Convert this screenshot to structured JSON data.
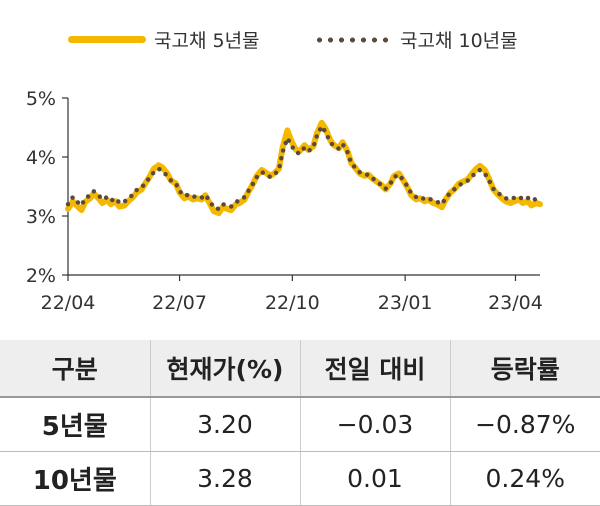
{
  "chart_data": {
    "type": "line",
    "xlabel": "",
    "ylabel": "",
    "x_ticks": [
      "22/04",
      "22/07",
      "22/10",
      "23/01",
      "23/04"
    ],
    "y_ticks": [
      "2%",
      "3%",
      "4%",
      "5%"
    ],
    "ylim": [
      2,
      5
    ],
    "grid": false,
    "legend": "top",
    "series": [
      {
        "name": "국고채 5년물",
        "color": "#F5B800",
        "style": "solid",
        "points": [
          [
            "2022-04-01",
            3.12
          ],
          [
            "2022-04-05",
            3.25
          ],
          [
            "2022-04-08",
            3.18
          ],
          [
            "2022-04-12",
            3.1
          ],
          [
            "2022-04-15",
            3.24
          ],
          [
            "2022-04-19",
            3.3
          ],
          [
            "2022-04-22",
            3.38
          ],
          [
            "2022-04-26",
            3.3
          ],
          [
            "2022-04-29",
            3.22
          ],
          [
            "2022-05-03",
            3.27
          ],
          [
            "2022-05-06",
            3.2
          ],
          [
            "2022-05-10",
            3.25
          ],
          [
            "2022-05-13",
            3.16
          ],
          [
            "2022-05-17",
            3.18
          ],
          [
            "2022-05-20",
            3.25
          ],
          [
            "2022-05-24",
            3.32
          ],
          [
            "2022-05-27",
            3.4
          ],
          [
            "2022-05-31",
            3.45
          ],
          [
            "2022-06-03",
            3.55
          ],
          [
            "2022-06-07",
            3.68
          ],
          [
            "2022-06-10",
            3.8
          ],
          [
            "2022-06-14",
            3.86
          ],
          [
            "2022-06-17",
            3.82
          ],
          [
            "2022-06-21",
            3.72
          ],
          [
            "2022-06-24",
            3.6
          ],
          [
            "2022-06-28",
            3.55
          ],
          [
            "2022-07-01",
            3.4
          ],
          [
            "2022-07-05",
            3.3
          ],
          [
            "2022-07-08",
            3.33
          ],
          [
            "2022-07-12",
            3.28
          ],
          [
            "2022-07-15",
            3.3
          ],
          [
            "2022-07-19",
            3.28
          ],
          [
            "2022-07-22",
            3.35
          ],
          [
            "2022-07-26",
            3.2
          ],
          [
            "2022-07-29",
            3.08
          ],
          [
            "2022-08-02",
            3.05
          ],
          [
            "2022-08-05",
            3.15
          ],
          [
            "2022-08-09",
            3.12
          ],
          [
            "2022-08-12",
            3.1
          ],
          [
            "2022-08-16",
            3.2
          ],
          [
            "2022-08-19",
            3.22
          ],
          [
            "2022-08-23",
            3.28
          ],
          [
            "2022-08-26",
            3.4
          ],
          [
            "2022-08-30",
            3.55
          ],
          [
            "2022-09-02",
            3.68
          ],
          [
            "2022-09-06",
            3.78
          ],
          [
            "2022-09-09",
            3.74
          ],
          [
            "2022-09-13",
            3.68
          ],
          [
            "2022-09-16",
            3.72
          ],
          [
            "2022-09-20",
            3.8
          ],
          [
            "2022-09-23",
            4.15
          ],
          [
            "2022-09-27",
            4.45
          ],
          [
            "2022-09-30",
            4.28
          ],
          [
            "2022-10-04",
            4.12
          ],
          [
            "2022-10-07",
            4.1
          ],
          [
            "2022-10-11",
            4.2
          ],
          [
            "2022-10-14",
            4.12
          ],
          [
            "2022-10-18",
            4.18
          ],
          [
            "2022-10-21",
            4.4
          ],
          [
            "2022-10-25",
            4.58
          ],
          [
            "2022-10-28",
            4.48
          ],
          [
            "2022-11-01",
            4.28
          ],
          [
            "2022-11-04",
            4.2
          ],
          [
            "2022-11-08",
            4.15
          ],
          [
            "2022-11-11",
            4.25
          ],
          [
            "2022-11-15",
            4.1
          ],
          [
            "2022-11-18",
            3.9
          ],
          [
            "2022-11-22",
            3.8
          ],
          [
            "2022-11-25",
            3.72
          ],
          [
            "2022-11-29",
            3.68
          ],
          [
            "2022-12-02",
            3.7
          ],
          [
            "2022-12-06",
            3.62
          ],
          [
            "2022-12-09",
            3.58
          ],
          [
            "2022-12-13",
            3.52
          ],
          [
            "2022-12-16",
            3.45
          ],
          [
            "2022-12-20",
            3.55
          ],
          [
            "2022-12-23",
            3.68
          ],
          [
            "2022-12-27",
            3.72
          ],
          [
            "2022-12-30",
            3.62
          ],
          [
            "2023-01-03",
            3.48
          ],
          [
            "2023-01-06",
            3.35
          ],
          [
            "2023-01-10",
            3.28
          ],
          [
            "2023-01-13",
            3.3
          ],
          [
            "2023-01-17",
            3.25
          ],
          [
            "2023-01-20",
            3.28
          ],
          [
            "2023-01-24",
            3.22
          ],
          [
            "2023-01-27",
            3.2
          ],
          [
            "2023-01-31",
            3.15
          ],
          [
            "2023-02-03",
            3.28
          ],
          [
            "2023-02-07",
            3.4
          ],
          [
            "2023-02-10",
            3.45
          ],
          [
            "2023-02-14",
            3.55
          ],
          [
            "2023-02-17",
            3.58
          ],
          [
            "2023-02-21",
            3.62
          ],
          [
            "2023-02-24",
            3.7
          ],
          [
            "2023-02-28",
            3.8
          ],
          [
            "2023-03-03",
            3.85
          ],
          [
            "2023-03-07",
            3.78
          ],
          [
            "2023-03-10",
            3.65
          ],
          [
            "2023-03-14",
            3.45
          ],
          [
            "2023-03-17",
            3.38
          ],
          [
            "2023-03-21",
            3.3
          ],
          [
            "2023-03-24",
            3.25
          ],
          [
            "2023-03-28",
            3.22
          ],
          [
            "2023-03-31",
            3.25
          ],
          [
            "2023-04-04",
            3.28
          ],
          [
            "2023-04-07",
            3.22
          ],
          [
            "2023-04-11",
            3.25
          ],
          [
            "2023-04-14",
            3.18
          ],
          [
            "2023-04-18",
            3.22
          ],
          [
            "2023-04-21",
            3.2
          ]
        ]
      },
      {
        "name": "국고채 10년물",
        "color": "#5a4a3e",
        "style": "dotted",
        "points": [
          [
            "2022-04-01",
            3.2
          ],
          [
            "2022-04-05",
            3.32
          ],
          [
            "2022-04-08",
            3.25
          ],
          [
            "2022-04-12",
            3.18
          ],
          [
            "2022-04-15",
            3.3
          ],
          [
            "2022-04-19",
            3.35
          ],
          [
            "2022-04-22",
            3.42
          ],
          [
            "2022-04-26",
            3.35
          ],
          [
            "2022-04-29",
            3.28
          ],
          [
            "2022-05-03",
            3.32
          ],
          [
            "2022-05-06",
            3.26
          ],
          [
            "2022-05-10",
            3.3
          ],
          [
            "2022-05-13",
            3.22
          ],
          [
            "2022-05-17",
            3.24
          ],
          [
            "2022-05-20",
            3.3
          ],
          [
            "2022-05-24",
            3.36
          ],
          [
            "2022-05-27",
            3.44
          ],
          [
            "2022-05-31",
            3.48
          ],
          [
            "2022-06-03",
            3.56
          ],
          [
            "2022-06-07",
            3.66
          ],
          [
            "2022-06-10",
            3.74
          ],
          [
            "2022-06-14",
            3.8
          ],
          [
            "2022-06-17",
            3.76
          ],
          [
            "2022-06-21",
            3.68
          ],
          [
            "2022-06-24",
            3.6
          ],
          [
            "2022-06-28",
            3.55
          ],
          [
            "2022-07-01",
            3.42
          ],
          [
            "2022-07-05",
            3.34
          ],
          [
            "2022-07-08",
            3.36
          ],
          [
            "2022-07-12",
            3.32
          ],
          [
            "2022-07-15",
            3.34
          ],
          [
            "2022-07-19",
            3.31
          ],
          [
            "2022-07-22",
            3.36
          ],
          [
            "2022-07-26",
            3.24
          ],
          [
            "2022-07-29",
            3.14
          ],
          [
            "2022-08-02",
            3.12
          ],
          [
            "2022-08-05",
            3.2
          ],
          [
            "2022-08-09",
            3.18
          ],
          [
            "2022-08-12",
            3.16
          ],
          [
            "2022-08-16",
            3.24
          ],
          [
            "2022-08-19",
            3.26
          ],
          [
            "2022-08-23",
            3.32
          ],
          [
            "2022-08-26",
            3.42
          ],
          [
            "2022-08-30",
            3.55
          ],
          [
            "2022-09-02",
            3.66
          ],
          [
            "2022-09-06",
            3.74
          ],
          [
            "2022-09-09",
            3.72
          ],
          [
            "2022-09-13",
            3.66
          ],
          [
            "2022-09-16",
            3.7
          ],
          [
            "2022-09-20",
            3.78
          ],
          [
            "2022-09-23",
            4.08
          ],
          [
            "2022-09-27",
            4.32
          ],
          [
            "2022-09-30",
            4.2
          ],
          [
            "2022-10-04",
            4.08
          ],
          [
            "2022-10-07",
            4.06
          ],
          [
            "2022-10-11",
            4.16
          ],
          [
            "2022-10-14",
            4.1
          ],
          [
            "2022-10-18",
            4.16
          ],
          [
            "2022-10-21",
            4.36
          ],
          [
            "2022-10-25",
            4.52
          ],
          [
            "2022-10-28",
            4.42
          ],
          [
            "2022-11-01",
            4.25
          ],
          [
            "2022-11-04",
            4.18
          ],
          [
            "2022-11-08",
            4.14
          ],
          [
            "2022-11-11",
            4.22
          ],
          [
            "2022-11-15",
            4.08
          ],
          [
            "2022-11-18",
            3.9
          ],
          [
            "2022-11-22",
            3.8
          ],
          [
            "2022-11-25",
            3.74
          ],
          [
            "2022-11-29",
            3.7
          ],
          [
            "2022-12-02",
            3.7
          ],
          [
            "2022-12-06",
            3.63
          ],
          [
            "2022-12-09",
            3.58
          ],
          [
            "2022-12-13",
            3.52
          ],
          [
            "2022-12-16",
            3.46
          ],
          [
            "2022-12-20",
            3.55
          ],
          [
            "2022-12-23",
            3.66
          ],
          [
            "2022-12-27",
            3.7
          ],
          [
            "2022-12-30",
            3.62
          ],
          [
            "2023-01-03",
            3.5
          ],
          [
            "2023-01-06",
            3.38
          ],
          [
            "2023-01-10",
            3.32
          ],
          [
            "2023-01-13",
            3.33
          ],
          [
            "2023-01-17",
            3.28
          ],
          [
            "2023-01-20",
            3.3
          ],
          [
            "2023-01-24",
            3.26
          ],
          [
            "2023-01-27",
            3.24
          ],
          [
            "2023-01-31",
            3.2
          ],
          [
            "2023-02-03",
            3.3
          ],
          [
            "2023-02-07",
            3.4
          ],
          [
            "2023-02-10",
            3.45
          ],
          [
            "2023-02-14",
            3.52
          ],
          [
            "2023-02-17",
            3.56
          ],
          [
            "2023-02-21",
            3.6
          ],
          [
            "2023-02-24",
            3.66
          ],
          [
            "2023-02-28",
            3.74
          ],
          [
            "2023-03-03",
            3.78
          ],
          [
            "2023-03-07",
            3.72
          ],
          [
            "2023-03-10",
            3.62
          ],
          [
            "2023-03-14",
            3.46
          ],
          [
            "2023-03-17",
            3.4
          ],
          [
            "2023-03-21",
            3.34
          ],
          [
            "2023-03-24",
            3.3
          ],
          [
            "2023-03-28",
            3.28
          ],
          [
            "2023-03-31",
            3.31
          ],
          [
            "2023-04-04",
            3.33
          ],
          [
            "2023-04-07",
            3.28
          ],
          [
            "2023-04-11",
            3.31
          ],
          [
            "2023-04-14",
            3.26
          ],
          [
            "2023-04-18",
            3.29
          ],
          [
            "2023-04-21",
            3.28
          ]
        ]
      }
    ]
  },
  "legend": {
    "items": [
      "국고채 5년물",
      "국고채 10년물"
    ]
  },
  "table": {
    "headers": [
      "구분",
      "현재가(%)",
      "전일 대비",
      "등락률"
    ],
    "rows": [
      [
        "5년물",
        "3.20",
        "−0.03",
        "−0.87%"
      ],
      [
        "10년물",
        "3.28",
        "0.01",
        "0.24%"
      ]
    ]
  }
}
